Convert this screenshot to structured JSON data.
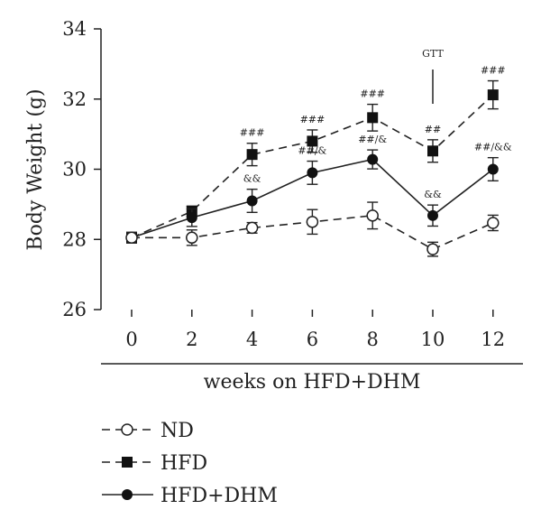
{
  "chart_data": {
    "type": "line",
    "title": "",
    "xlabel": "weeks on HFD+DHM",
    "ylabel": "Body Weight (g)",
    "x": [
      0,
      2,
      4,
      6,
      8,
      10,
      12
    ],
    "x_ticks": [
      "0",
      "2",
      "4",
      "6",
      "8",
      "10",
      "12"
    ],
    "ylim": [
      26,
      34
    ],
    "y_ticks": [
      "26",
      "28",
      "30",
      "32",
      "34"
    ],
    "grid": false,
    "legend_position": "bottom-left",
    "series": [
      {
        "name": "ND",
        "line_style": "dashed",
        "marker": "open-circle",
        "values": [
          28.05,
          28.05,
          28.33,
          28.5,
          28.68,
          27.72,
          28.47
        ],
        "errors": [
          0.15,
          0.22,
          0.15,
          0.35,
          0.38,
          0.2,
          0.22
        ],
        "labels": [
          "",
          "",
          "",
          "",
          "",
          "",
          ""
        ]
      },
      {
        "name": "HFD",
        "line_style": "dashed",
        "marker": "filled-square",
        "values": [
          28.05,
          28.8,
          30.42,
          30.8,
          31.47,
          30.52,
          32.12
        ],
        "errors": [
          0.15,
          0.15,
          0.32,
          0.32,
          0.38,
          0.32,
          0.4
        ],
        "labels": [
          "",
          "",
          "###",
          "###",
          "###",
          "##",
          "###"
        ]
      },
      {
        "name": "HFD+DHM",
        "line_style": "solid",
        "marker": "filled-circle",
        "values": [
          28.05,
          28.62,
          29.1,
          29.9,
          30.28,
          28.68,
          30.0
        ],
        "errors": [
          0.15,
          0.25,
          0.33,
          0.33,
          0.27,
          0.3,
          0.33
        ],
        "labels": [
          "",
          "",
          "&&",
          "##/&",
          "##/&",
          "&&",
          "##/&&"
        ]
      }
    ],
    "annotations": [
      {
        "text": "GTT",
        "x": 10,
        "style": "vertical-marker"
      }
    ]
  }
}
